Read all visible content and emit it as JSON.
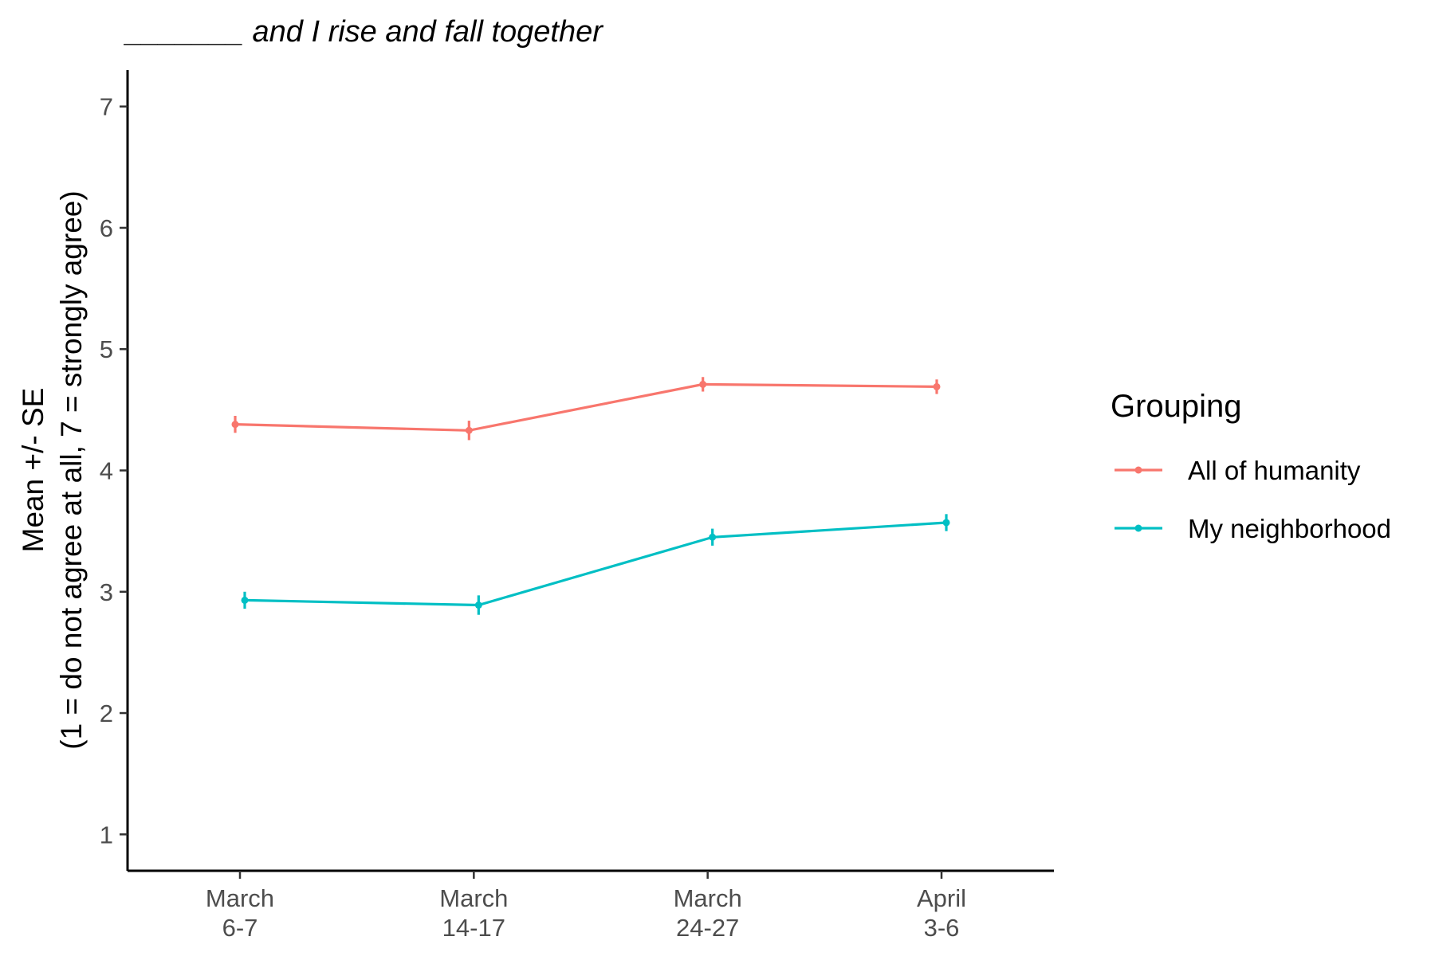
{
  "chart_data": {
    "type": "line",
    "title": "_______ and I rise and fall together",
    "ylabel_lines": [
      "Mean +/- SE",
      "(1 = do not agree at all, 7 = strongly agree)"
    ],
    "xlabel": "",
    "categories": [
      [
        "March",
        "6-7"
      ],
      [
        "March",
        "14-17"
      ],
      [
        "March",
        "24-27"
      ],
      [
        "April",
        "3-6"
      ]
    ],
    "ylim": [
      0.7,
      7.3
    ],
    "yticks": [
      1,
      2,
      3,
      4,
      5,
      6,
      7
    ],
    "grid": false,
    "legend": {
      "title": "Grouping",
      "position": "right"
    },
    "series": [
      {
        "name": "All of humanity",
        "color": "#F8766D",
        "values": [
          4.38,
          4.33,
          4.71,
          4.69
        ],
        "se": [
          0.07,
          0.08,
          0.06,
          0.06
        ]
      },
      {
        "name": "My neighborhood",
        "color": "#00BFC4",
        "values": [
          2.93,
          2.89,
          3.45,
          3.57
        ],
        "se": [
          0.07,
          0.08,
          0.07,
          0.07
        ]
      }
    ]
  }
}
